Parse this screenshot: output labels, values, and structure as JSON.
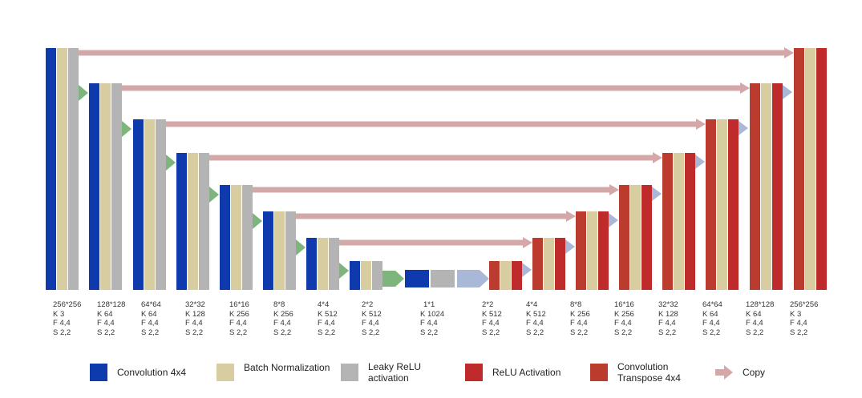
{
  "colors": {
    "conv": "#0f3aad",
    "bn": "#d8cca1",
    "lrelu": "#b4b4b4",
    "relu": "#bf2a2a",
    "convt": "#bc3b2f",
    "copy": "#d4a8a8",
    "enc_arrow": "#7db57c",
    "dec_arrow": "#a8b8d6"
  },
  "encoder": [
    {
      "size": "256*256",
      "k": "K 3",
      "f": "F 4,4",
      "s": "S 2,2"
    },
    {
      "size": "128*128",
      "k": "K 64",
      "f": "F 4,4",
      "s": "S 2,2"
    },
    {
      "size": "64*64",
      "k": "K 64",
      "f": "F 4,4",
      "s": "S 2,2"
    },
    {
      "size": "32*32",
      "k": "K 128",
      "f": "F 4,4",
      "s": "S 2,2"
    },
    {
      "size": "16*16",
      "k": "K 256",
      "f": "F 4,4",
      "s": "S 2,2"
    },
    {
      "size": "8*8",
      "k": "K 256",
      "f": "F 4,4",
      "s": "S 2,2"
    },
    {
      "size": "4*4",
      "k": "K 512",
      "f": "F 4,4",
      "s": "S 2,2"
    },
    {
      "size": "2*2",
      "k": "K 512",
      "f": "F 4,4",
      "s": "S 2,2"
    }
  ],
  "bottleneck": {
    "size": "1*1",
    "k": "K 1024",
    "f": "F 4,4",
    "s": "S 2,2"
  },
  "decoder": [
    {
      "size": "2*2",
      "k": "K 512",
      "f": "F 4,4",
      "s": "S 2,2"
    },
    {
      "size": "4*4",
      "k": "K 512",
      "f": "F 4,4",
      "s": "S 2,2"
    },
    {
      "size": "8*8",
      "k": "K 256",
      "f": "F 4,4",
      "s": "S 2,2"
    },
    {
      "size": "16*16",
      "k": "K 256",
      "f": "F 4,4",
      "s": "S 2,2"
    },
    {
      "size": "32*32",
      "k": "K 128",
      "f": "F 4,4",
      "s": "S 2,2"
    },
    {
      "size": "64*64",
      "k": "K 64",
      "f": "F 4,4",
      "s": "S 2,2"
    },
    {
      "size": "128*128",
      "k": "K 64",
      "f": "F 4,4",
      "s": "S 2,2"
    },
    {
      "size": "256*256",
      "k": "K 3",
      "f": "F 4,4",
      "s": "S 2,2"
    }
  ],
  "legend": {
    "conv": "Convolution  4x4",
    "bn": "Batch Normalization",
    "lrelu_line1": "Leaky ReLU",
    "lrelu_line2": "activation",
    "relu": "ReLU Activation",
    "convt_line1": "Convolution",
    "convt_line2": "Transpose  4x4",
    "copy": "Copy"
  }
}
